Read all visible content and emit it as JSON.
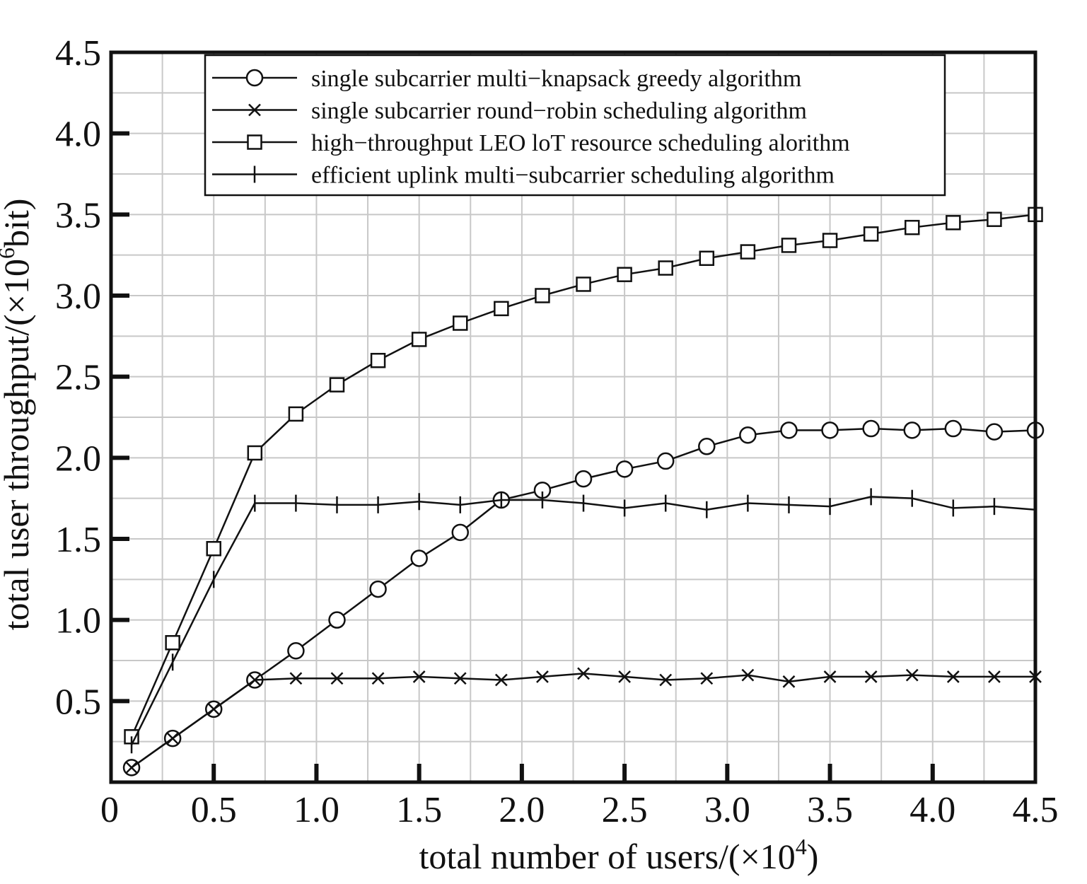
{
  "chart_data": {
    "type": "line",
    "xlabel_main": "total number of users/(×10",
    "xlabel_sup": "4",
    "xlabel_end": ")",
    "ylabel_main": "total user throughput/(×10",
    "ylabel_sup": "6",
    "ylabel_end": "bit)",
    "xlim": [
      0,
      4.5
    ],
    "ylim": [
      0,
      4.5
    ],
    "x_ticks": [
      0,
      0.5,
      1.0,
      1.5,
      2.0,
      2.5,
      3.0,
      3.5,
      4.0,
      4.5
    ],
    "x_tick_labels": [
      "0",
      "0.5",
      "1.0",
      "1.5",
      "2.0",
      "2.5",
      "3.0",
      "3.5",
      "4.0",
      "4.5"
    ],
    "y_ticks": [
      0.5,
      1.0,
      1.5,
      2.0,
      2.5,
      3.0,
      3.5,
      4.0,
      4.5
    ],
    "y_tick_labels": [
      "0.5",
      "1.0",
      "1.5",
      "2.0",
      "2.5",
      "3.0",
      "3.5",
      "4.0",
      "4.5"
    ],
    "grid": true,
    "legend_position": "top",
    "x": [
      0.1,
      0.3,
      0.5,
      0.7,
      0.9,
      1.1,
      1.3,
      1.5,
      1.7,
      1.9,
      2.1,
      2.3,
      2.5,
      2.7,
      2.9,
      3.1,
      3.3,
      3.5,
      3.7,
      3.9,
      4.1,
      4.3,
      4.5
    ],
    "series": [
      {
        "name": "single subcarrier multi−knapsack greedy algorithm",
        "marker": "circle",
        "values": [
          0.09,
          0.27,
          0.45,
          0.63,
          0.81,
          1.0,
          1.19,
          1.38,
          1.54,
          1.74,
          1.8,
          1.87,
          1.93,
          1.98,
          2.07,
          2.14,
          2.17,
          2.17,
          2.18,
          2.17,
          2.18,
          2.16,
          2.17
        ]
      },
      {
        "name": "single subcarrier round−robin scheduling algorithm",
        "marker": "x",
        "values": [
          0.09,
          0.27,
          0.45,
          0.63,
          0.64,
          0.64,
          0.64,
          0.65,
          0.64,
          0.63,
          0.65,
          0.67,
          0.65,
          0.63,
          0.64,
          0.66,
          0.62,
          0.65,
          0.65,
          0.66,
          0.65,
          0.65,
          0.65
        ]
      },
      {
        "name": "high−throughput LEO loT resource scheduling alorithm",
        "marker": "square",
        "values": [
          0.28,
          0.86,
          1.44,
          2.03,
          2.27,
          2.45,
          2.6,
          2.73,
          2.83,
          2.92,
          3.0,
          3.07,
          3.13,
          3.17,
          3.23,
          3.27,
          3.31,
          3.34,
          3.38,
          3.42,
          3.45,
          3.47,
          3.5
        ]
      },
      {
        "name": "efficient uplink multi−subcarrier scheduling algorithm",
        "marker": "plus",
        "values": [
          0.23,
          0.74,
          1.25,
          1.72,
          1.72,
          1.71,
          1.71,
          1.73,
          1.71,
          1.74,
          1.74,
          1.72,
          1.69,
          1.72,
          1.68,
          1.72,
          1.71,
          1.7,
          1.76,
          1.75,
          1.69,
          1.7,
          1.68
        ]
      }
    ]
  }
}
